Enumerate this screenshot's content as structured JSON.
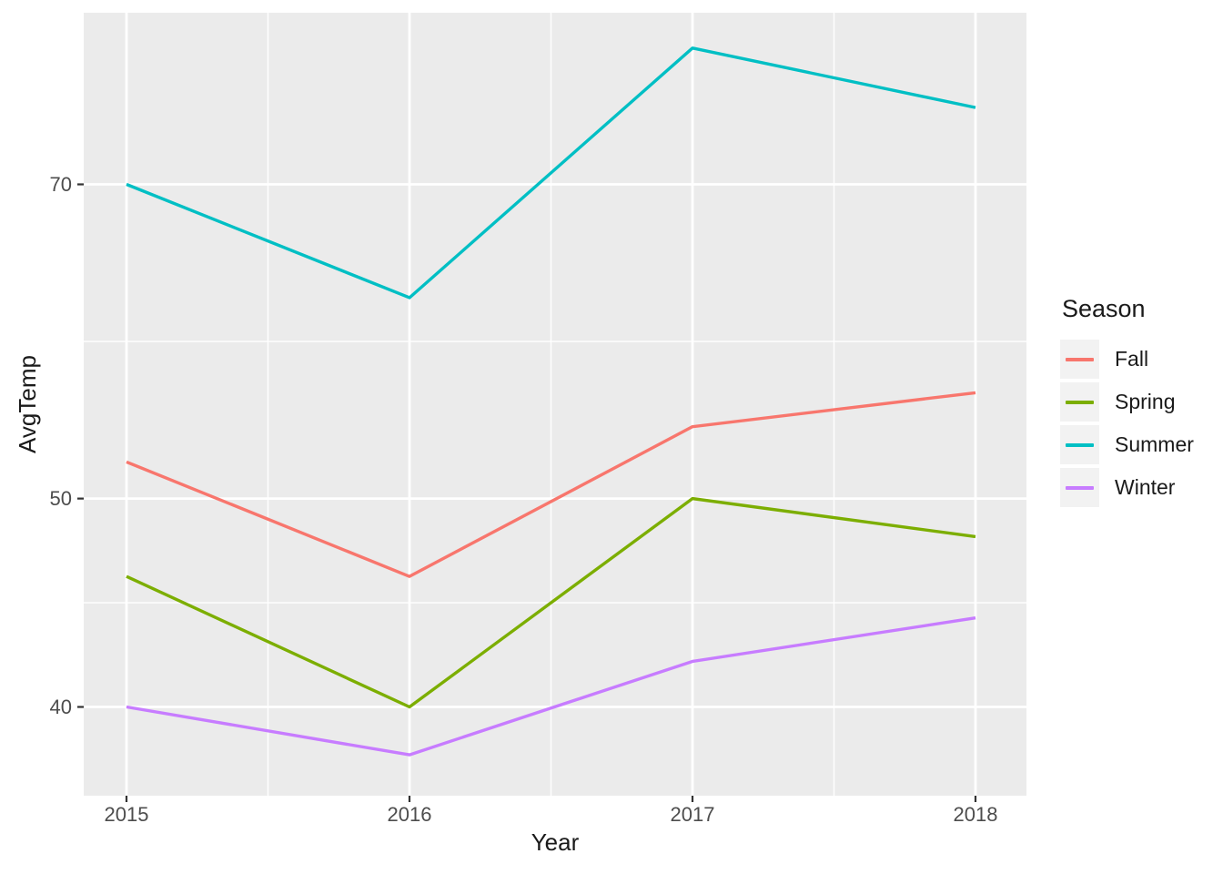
{
  "chart_data": {
    "type": "line",
    "title": "",
    "xlabel": "Year",
    "ylabel": "AvgTemp",
    "x": [
      2015,
      2016,
      2017,
      2018
    ],
    "series": [
      {
        "name": "Fall",
        "color": "#F8766D",
        "values": [
          52,
          46,
          54,
          56
        ]
      },
      {
        "name": "Spring",
        "color": "#7CAE00",
        "values": [
          46,
          40,
          50,
          48
        ]
      },
      {
        "name": "Summer",
        "color": "#00BFC4",
        "values": [
          70,
          62,
          81,
          76
        ]
      },
      {
        "name": "Winter",
        "color": "#C77CFF",
        "values": [
          40,
          38,
          42,
          44
        ]
      }
    ],
    "x_axis": {
      "tick_values": [
        2015,
        2016,
        2017,
        2018
      ],
      "tick_labels": [
        "2015",
        "2016",
        "2017",
        "2018"
      ],
      "minor_gridline_values": [
        2015.5,
        2016.5,
        2017.5
      ]
    },
    "y_axis": {
      "scale": "log10",
      "tick_values": [
        70,
        50,
        40
      ],
      "tick_labels": [
        "70",
        "50",
        "40"
      ],
      "minor_gridline_values": [
        59.16,
        44.72
      ],
      "range_approx": [
        36.5,
        84.1
      ]
    },
    "legend": {
      "title": "Season",
      "position": "right",
      "items": [
        {
          "label": "Fall",
          "color": "#F8766D"
        },
        {
          "label": "Spring",
          "color": "#7CAE00"
        },
        {
          "label": "Summer",
          "color": "#00BFC4"
        },
        {
          "label": "Winter",
          "color": "#C77CFF"
        }
      ]
    },
    "grid": true,
    "colors": {
      "figure_background": "#FFFFFF",
      "panel_background": "#EBEBEB",
      "gridline": "#FFFFFF",
      "tick_mark": "#333333",
      "tick_text": "#4D4D4D",
      "title_text": "#1A1A1A"
    }
  }
}
